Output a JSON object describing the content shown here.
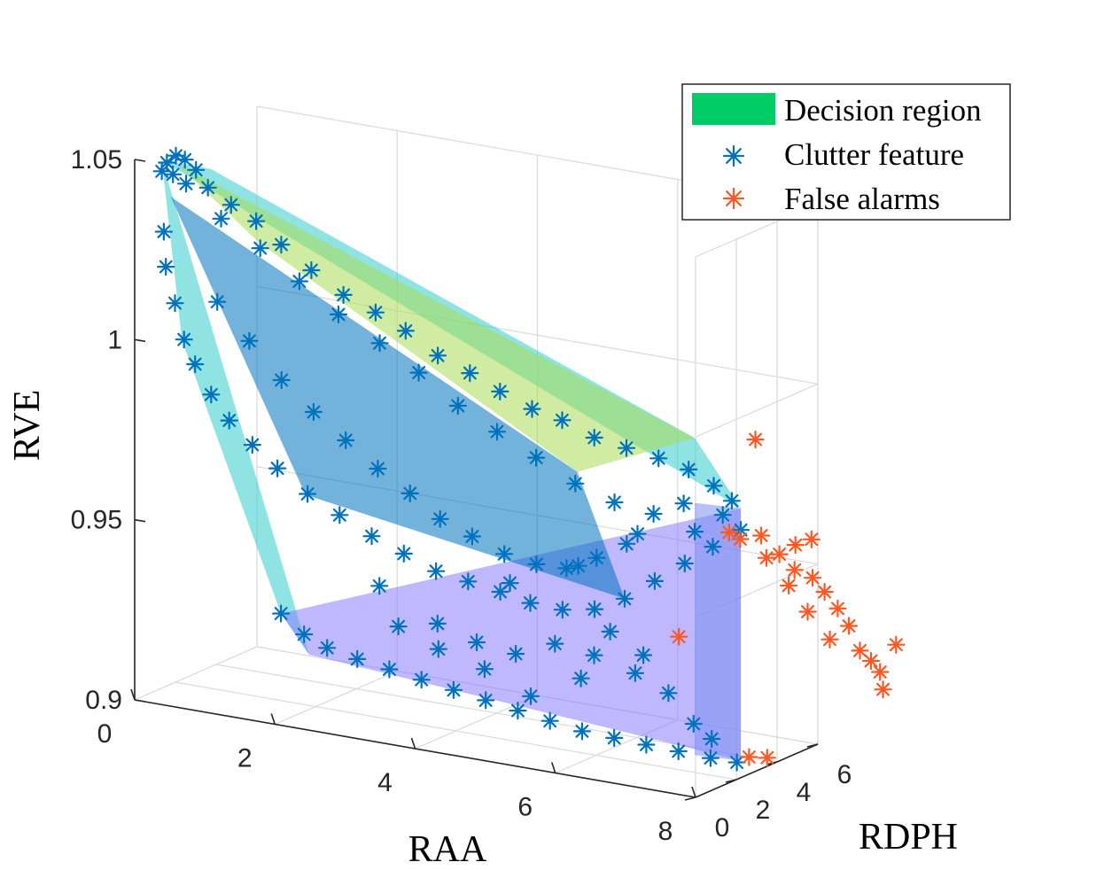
{
  "chart_data": {
    "type": "scatter",
    "subtype": "3d-scatter-with-decision-region",
    "title": "",
    "axes": {
      "x": {
        "label": "RAA",
        "range": [
          0,
          8
        ],
        "ticks": [
          0,
          2,
          4,
          6,
          8
        ],
        "tick_labels": [
          "0",
          "2",
          "4",
          "6",
          "8"
        ]
      },
      "y": {
        "label": "RDPH",
        "range": [
          0,
          6
        ],
        "ticks": [
          0,
          2,
          4,
          6
        ],
        "tick_labels": [
          "0",
          "2",
          "4",
          "6"
        ]
      },
      "z": {
        "label": "RVE",
        "range": [
          0.9,
          1.05
        ],
        "ticks": [
          0.9,
          0.95,
          1.0,
          1.05
        ],
        "tick_labels": [
          "0.9",
          "0.95",
          "1",
          "1.05"
        ]
      }
    },
    "grid": true,
    "legend": {
      "position": "top-right",
      "entries": [
        {
          "label": "Decision region",
          "kind": "patch",
          "color": "#00cc66"
        },
        {
          "label": "Clutter feature",
          "kind": "marker",
          "color": "#0072bd"
        },
        {
          "label": "False alarms",
          "kind": "marker",
          "color": "#ff5722"
        }
      ]
    },
    "series": [
      {
        "name": "Clutter feature",
        "color": "#0072bd",
        "marker": "*",
        "points": [
          [
            0.3,
            0.3,
            1.047
          ],
          [
            0.4,
            0.2,
            1.05
          ],
          [
            0.5,
            0.3,
            1.052
          ],
          [
            0.6,
            0.4,
            1.051
          ],
          [
            0.4,
            0.5,
            1.046
          ],
          [
            0.5,
            0.8,
            1.043
          ],
          [
            0.7,
            0.6,
            1.048
          ],
          [
            0.9,
            0.5,
            1.044
          ],
          [
            1.2,
            0.6,
            1.04
          ],
          [
            1.5,
            0.8,
            1.036
          ],
          [
            1.8,
            1.0,
            1.03
          ],
          [
            2.2,
            1.1,
            1.024
          ],
          [
            2.6,
            1.3,
            1.018
          ],
          [
            3.0,
            1.5,
            1.014
          ],
          [
            3.4,
            1.6,
            1.01
          ],
          [
            3.8,
            1.8,
            1.004
          ],
          [
            4.2,
            2.0,
            1.0
          ],
          [
            4.6,
            2.1,
            0.996
          ],
          [
            5.0,
            2.3,
            0.992
          ],
          [
            5.4,
            2.4,
            0.99
          ],
          [
            5.8,
            2.6,
            0.986
          ],
          [
            6.2,
            2.8,
            0.984
          ],
          [
            6.6,
            3.0,
            0.982
          ],
          [
            7.0,
            3.1,
            0.98
          ],
          [
            7.3,
            3.3,
            0.976
          ],
          [
            7.5,
            3.5,
            0.972
          ],
          [
            0.3,
            0.4,
            1.03
          ],
          [
            0.3,
            0.5,
            1.02
          ],
          [
            0.4,
            0.6,
            1.01
          ],
          [
            0.5,
            0.7,
            1.0
          ],
          [
            0.6,
            0.9,
            0.993
          ],
          [
            0.8,
            1.0,
            0.985
          ],
          [
            1.0,
            1.2,
            0.978
          ],
          [
            1.3,
            1.3,
            0.972
          ],
          [
            1.6,
            1.5,
            0.966
          ],
          [
            2.0,
            1.6,
            0.96
          ],
          [
            2.4,
            1.8,
            0.955
          ],
          [
            2.8,
            2.0,
            0.95
          ],
          [
            3.2,
            2.2,
            0.946
          ],
          [
            3.6,
            2.4,
            0.942
          ],
          [
            4.0,
            2.6,
            0.94
          ],
          [
            4.4,
            2.8,
            0.938
          ],
          [
            4.8,
            2.9,
            0.936
          ],
          [
            5.2,
            3.1,
            0.935
          ],
          [
            5.6,
            3.3,
            0.936
          ],
          [
            6.0,
            3.4,
            0.94
          ],
          [
            6.4,
            3.5,
            0.946
          ],
          [
            6.8,
            3.6,
            0.952
          ],
          [
            7.2,
            3.6,
            0.958
          ],
          [
            2.0,
            0.3,
            0.93
          ],
          [
            2.3,
            0.4,
            0.925
          ],
          [
            2.6,
            0.5,
            0.922
          ],
          [
            3.0,
            0.6,
            0.92
          ],
          [
            3.4,
            0.8,
            0.918
          ],
          [
            3.8,
            1.0,
            0.916
          ],
          [
            4.2,
            1.2,
            0.914
          ],
          [
            4.6,
            1.4,
            0.912
          ],
          [
            5.0,
            1.6,
            0.91
          ],
          [
            5.4,
            1.8,
            0.908
          ],
          [
            5.8,
            2.0,
            0.906
          ],
          [
            6.2,
            2.2,
            0.905
          ],
          [
            6.6,
            2.4,
            0.904
          ],
          [
            7.0,
            2.6,
            0.903
          ],
          [
            7.4,
            2.8,
            0.902
          ],
          [
            3.5,
            0.9,
            0.93
          ],
          [
            4.0,
            1.1,
            0.932
          ],
          [
            4.5,
            1.3,
            0.928
          ],
          [
            5.0,
            1.5,
            0.926
          ],
          [
            5.5,
            1.7,
            0.93
          ],
          [
            6.0,
            1.9,
            0.928
          ],
          [
            6.5,
            2.2,
            0.924
          ],
          [
            3.2,
            1.0,
            0.94
          ],
          [
            4.8,
            1.9,
            0.944
          ],
          [
            5.6,
            2.5,
            0.95
          ],
          [
            6.3,
            3.0,
            0.96
          ],
          [
            6.9,
            3.2,
            0.97
          ],
          [
            7.4,
            3.4,
            0.968
          ],
          [
            7.6,
            3.6,
            0.964
          ],
          [
            7.0,
            3.4,
            0.962
          ],
          [
            1.0,
            0.8,
            1.035
          ],
          [
            1.5,
            1.0,
            1.028
          ],
          [
            2.0,
            1.2,
            1.02
          ],
          [
            2.5,
            1.4,
            1.012
          ],
          [
            3.0,
            1.7,
            1.005
          ],
          [
            3.5,
            1.9,
            0.998
          ],
          [
            4.0,
            2.1,
            0.99
          ],
          [
            4.5,
            2.3,
            0.984
          ],
          [
            5.0,
            2.5,
            0.978
          ],
          [
            5.5,
            2.7,
            0.972
          ],
          [
            6.0,
            2.9,
            0.968
          ],
          [
            6.5,
            3.1,
            0.966
          ],
          [
            0.8,
            1.3,
            1.01
          ],
          [
            1.2,
            1.5,
            1.0
          ],
          [
            1.6,
            1.7,
            0.99
          ],
          [
            2.0,
            1.9,
            0.982
          ],
          [
            2.4,
            2.1,
            0.975
          ],
          [
            2.8,
            2.3,
            0.968
          ],
          [
            3.2,
            2.5,
            0.962
          ],
          [
            3.6,
            2.6,
            0.956
          ],
          [
            4.0,
            2.8,
            0.952
          ],
          [
            4.4,
            3.0,
            0.948
          ],
          [
            4.8,
            3.2,
            0.946
          ],
          [
            5.2,
            3.3,
            0.946
          ],
          [
            5.6,
            3.4,
            0.95
          ],
          [
            6.0,
            3.5,
            0.955
          ],
          [
            6.5,
            2.6,
            0.928
          ],
          [
            6.8,
            2.8,
            0.918
          ],
          [
            7.1,
            3.0,
            0.91
          ],
          [
            7.3,
            3.2,
            0.906
          ],
          [
            7.6,
            3.4,
            0.9
          ],
          [
            6.2,
            2.0,
            0.935
          ],
          [
            5.9,
            1.6,
            0.922
          ],
          [
            5.3,
            1.2,
            0.916
          ],
          [
            4.7,
            1.0,
            0.922
          ],
          [
            4.1,
            0.8,
            0.926
          ]
        ]
      },
      {
        "name": "False alarms",
        "color": "#ff5722",
        "marker": "*",
        "points": [
          [
            7.4,
            5.0,
            0.985
          ],
          [
            7.6,
            4.6,
            0.96
          ],
          [
            7.8,
            4.8,
            0.955
          ],
          [
            8.0,
            4.9,
            0.958
          ],
          [
            8.2,
            5.0,
            0.96
          ],
          [
            7.9,
            5.2,
            0.95
          ],
          [
            8.1,
            5.4,
            0.948
          ],
          [
            8.3,
            5.3,
            0.945
          ],
          [
            8.4,
            5.6,
            0.94
          ],
          [
            8.5,
            5.8,
            0.935
          ],
          [
            8.2,
            5.9,
            0.93
          ],
          [
            8.6,
            6.0,
            0.928
          ],
          [
            8.7,
            6.2,
            0.925
          ],
          [
            8.8,
            6.3,
            0.922
          ],
          [
            9.0,
            6.4,
            0.93
          ],
          [
            8.9,
            6.1,
            0.918
          ],
          [
            7.7,
            5.6,
            0.944
          ],
          [
            7.5,
            5.2,
            0.952
          ],
          [
            8.0,
            5.5,
            0.938
          ],
          [
            6.6,
            4.0,
            0.93
          ],
          [
            7.6,
            4.0,
            0.9
          ],
          [
            7.8,
            4.2,
            0.9
          ],
          [
            7.2,
            4.4,
            0.96
          ],
          [
            7.3,
            4.6,
            0.958
          ]
        ]
      }
    ],
    "decision_region_facets": [
      {
        "name": "upper",
        "color": "#33cccc",
        "vertices": [
          [
            0.3,
            0.3,
            1.05
          ],
          [
            1.0,
            0.3,
            1.05
          ],
          [
            7.0,
            3.4,
            0.988
          ],
          [
            7.6,
            3.6,
            0.97
          ]
        ]
      },
      {
        "name": "front-lower",
        "color": "#33cccc",
        "vertices": [
          [
            0.3,
            0.3,
            1.05
          ],
          [
            0.5,
            0.6,
            1.0
          ],
          [
            2.0,
            0.3,
            0.93
          ],
          [
            2.4,
            0.3,
            0.92
          ]
        ]
      },
      {
        "name": "bottom",
        "color": "#8a7dff",
        "vertices": [
          [
            2.4,
            0.3,
            0.92
          ],
          [
            7.6,
            3.6,
            0.9
          ],
          [
            7.6,
            3.6,
            0.97
          ],
          [
            2.0,
            0.3,
            0.93
          ]
        ]
      },
      {
        "name": "right",
        "color": "#7a8ff0",
        "vertices": [
          [
            7.6,
            3.6,
            0.97
          ],
          [
            7.6,
            3.6,
            0.9
          ],
          [
            7.0,
            3.4,
            0.9
          ],
          [
            7.0,
            3.4,
            0.97
          ]
        ]
      },
      {
        "name": "inner-upper",
        "color": "#aadd55",
        "vertices": [
          [
            0.5,
            0.3,
            1.05
          ],
          [
            7.0,
            3.4,
            0.988
          ],
          [
            5.5,
            2.8,
            0.975
          ],
          [
            1.5,
            0.9,
            1.03
          ]
        ]
      },
      {
        "name": "inner-core",
        "color": "#0072bd",
        "vertices": [
          [
            0.4,
            0.4,
            1.04
          ],
          [
            5.5,
            2.8,
            0.975
          ],
          [
            6.0,
            3.4,
            0.94
          ],
          [
            2.0,
            1.5,
            0.96
          ]
        ]
      }
    ]
  }
}
